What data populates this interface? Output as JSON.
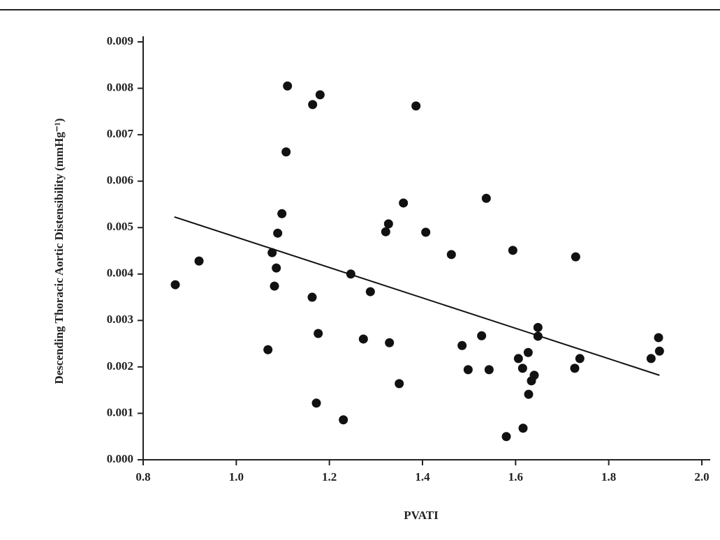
{
  "chart_data": {
    "type": "scatter",
    "x_label": "PVATI",
    "y_label": "Descending Thoracic Aortic Distensibility (mmHg⁻¹)",
    "xlim": [
      0.8,
      2.0
    ],
    "ylim": [
      0,
      0.009
    ],
    "xticks": [
      0.8,
      {
        "value": 1,
        "label": "1.0"
      },
      1.2,
      1.4,
      1.6,
      1.8,
      {
        "value": 2,
        "label": "2.0"
      }
    ],
    "yticks": [
      {
        "value": 0,
        "label": "0.000"
      },
      0.001,
      0.002,
      0.003,
      0.004,
      0.005,
      0.006,
      0.007,
      0.008,
      0.009
    ],
    "color": "#111111",
    "series": [
      {
        "x": [
          0.869,
          0.92,
          1.068,
          1.077,
          1.082,
          1.086,
          1.089,
          1.098,
          1.107,
          1.11,
          1.164,
          1.18,
          1.163,
          1.176,
          1.172,
          1.23,
          1.246,
          1.273,
          1.288,
          1.321,
          1.327,
          1.329,
          1.35,
          1.359,
          1.386,
          1.407,
          1.462,
          1.485,
          1.498,
          1.527,
          1.537,
          1.543,
          1.594,
          1.58,
          1.606,
          1.615,
          1.616,
          1.627,
          1.628,
          1.634,
          1.64,
          1.648,
          1.648,
          1.729,
          1.727,
          1.738,
          1.891,
          1.907,
          1.909
        ],
        "values": [
          0.00377,
          0.00428,
          0.00237,
          0.00446,
          0.00374,
          0.00413,
          0.00488,
          0.0053,
          0.00663,
          0.00805,
          0.00765,
          0.00786,
          0.0035,
          0.00272,
          0.00122,
          0.00086,
          0.004,
          0.0026,
          0.00362,
          0.00491,
          0.00508,
          0.00252,
          0.00164,
          0.00553,
          0.00762,
          0.0049,
          0.00442,
          0.00246,
          0.00194,
          0.00267,
          0.00563,
          0.00194,
          0.00451,
          0.0005,
          0.00218,
          0.00197,
          0.00068,
          0.00231,
          0.00141,
          0.0017,
          0.00182,
          0.00285,
          0.00266,
          0.00437,
          0.00197,
          0.00218,
          0.00218,
          0.00263,
          0.00234
        ]
      }
    ],
    "trend_line": {
      "x": [
        0.867,
        1.909
      ],
      "values": [
        0.00523,
        0.00182
      ]
    }
  }
}
